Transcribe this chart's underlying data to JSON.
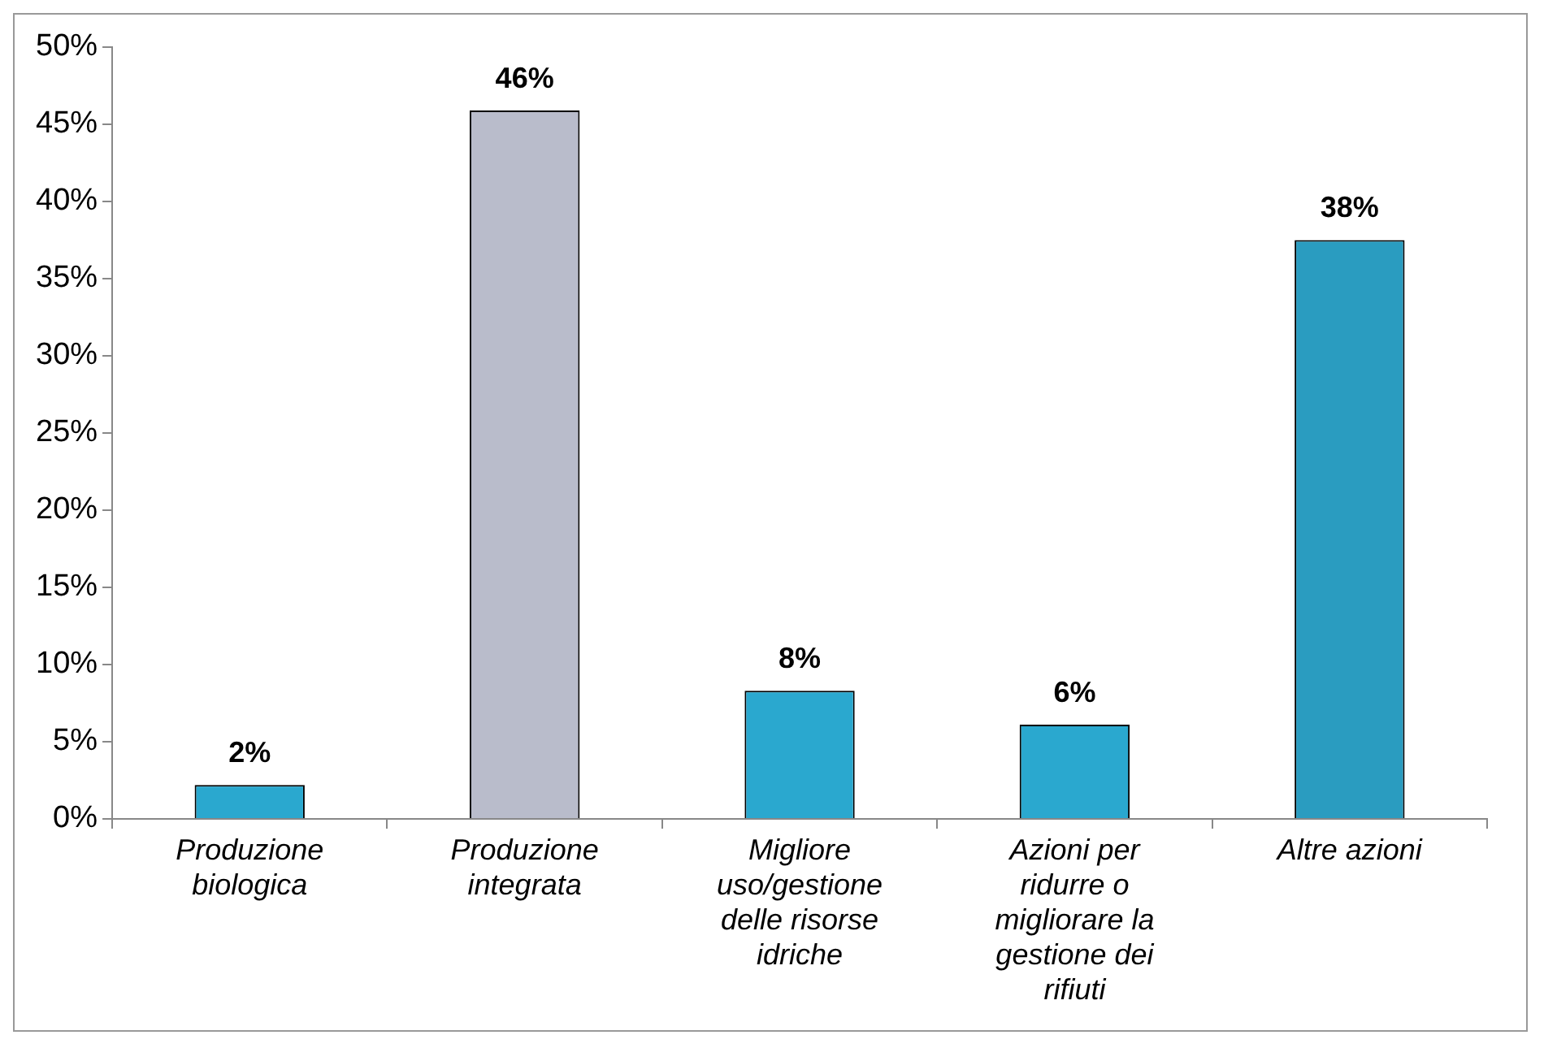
{
  "chart_data": {
    "type": "bar",
    "categories": [
      "Produzione biologica",
      "Produzione integrata",
      "Migliore uso/gestione delle risorse idriche",
      "Azioni per ridurre o migliorare la gestione dei rifiuti",
      "Altre azioni"
    ],
    "values": [
      2.2,
      45.9,
      8.3,
      6.1,
      37.5
    ],
    "value_labels": [
      "2%",
      "46%",
      "8%",
      "6%",
      "38%"
    ],
    "colors": [
      "#2aa8cf",
      "#b9bccb",
      "#2aa8cf",
      "#2aa8cf",
      "#2a9cc0"
    ],
    "ylim": [
      0,
      50
    ],
    "yticks": [
      {
        "value": 0,
        "label": "0%"
      },
      {
        "value": 5,
        "label": "5%"
      },
      {
        "value": 10,
        "label": "10%"
      },
      {
        "value": 15,
        "label": "15%"
      },
      {
        "value": 20,
        "label": "20%"
      },
      {
        "value": 25,
        "label": "25%"
      },
      {
        "value": 30,
        "label": "30%"
      },
      {
        "value": 35,
        "label": "35%"
      },
      {
        "value": 40,
        "label": "40%"
      },
      {
        "value": 45,
        "label": "45%"
      },
      {
        "value": 50,
        "label": "50%"
      }
    ],
    "grid": false,
    "legend": false
  }
}
